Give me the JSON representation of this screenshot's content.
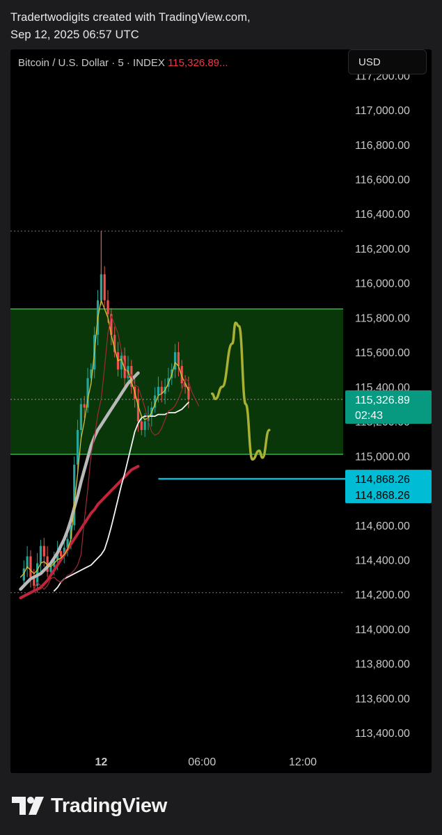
{
  "header": {
    "credit": "Tradertwodigits created with TradingView.com,",
    "timestamp": "Sep 12, 2025 06:57 UTC"
  },
  "legend": {
    "symbol": "Bitcoin / U.S. Dollar · 5 · INDEX",
    "last": "115,326.89..."
  },
  "currency_button": "USD",
  "brand": {
    "name": "TradingView",
    "logo_icon": "tradingview-logo-icon"
  },
  "colors": {
    "zone_fill": "#0a3a0a",
    "zone_border": "#3fae4f",
    "price_tag": "#089981",
    "support_line": "#00bcd4",
    "projection": "#a9b032",
    "ma_red": "#c2253a",
    "ma_white": "#e8e8e8",
    "ma_yellow": "#d4c233"
  },
  "chart_data": {
    "type": "line",
    "series_kind": "candlestick price with moving averages",
    "ylim": [
      113300,
      117350
    ],
    "y_ticks": [
      "117,200.00",
      "117,000.00",
      "116,800.00",
      "116,600.00",
      "116,400.00",
      "116,200.00",
      "116,000.00",
      "115,800.00",
      "115,600.00",
      "115,400.00",
      "115,200.00",
      "115,000.00",
      "114,800.00",
      "114,600.00",
      "114,400.00",
      "114,200.00",
      "114,000.00",
      "113,800.00",
      "113,600.00",
      "113,400.00"
    ],
    "y_tick_values": [
      117200,
      117000,
      116800,
      116600,
      116400,
      116200,
      116000,
      115800,
      115600,
      115400,
      115200,
      115000,
      114800,
      114600,
      114400,
      114200,
      114000,
      113800,
      113600,
      113400
    ],
    "x_ticks": [
      {
        "label": "12",
        "bar": 24
      },
      {
        "label": "06:00",
        "bar": 54
      },
      {
        "label": "12:00",
        "bar": 84
      }
    ],
    "x_bar_range": [
      -3,
      96
    ],
    "price": [
      114280,
      114350,
      114420,
      114300,
      114250,
      114380,
      114480,
      114420,
      114330,
      114360,
      114400,
      114450,
      114420,
      114470,
      114520,
      114600,
      114950,
      115150,
      115300,
      115280,
      115450,
      115500,
      115700,
      115900,
      116050,
      115900,
      115820,
      115700,
      115600,
      115500,
      115580,
      115450,
      115520,
      115400,
      115330,
      115200,
      115150,
      115200,
      115230,
      115280,
      115350,
      115400,
      115360,
      115400,
      115450,
      115500,
      115600,
      115520,
      115420,
      115400,
      115326.89
    ],
    "ma_fast": [
      114300,
      114320,
      114360,
      114340,
      114320,
      114340,
      114380,
      114390,
      114370,
      114360,
      114380,
      114400,
      114410,
      114430,
      114460,
      114520,
      114720,
      114900,
      115100,
      115200,
      115330,
      115420,
      115600,
      115800,
      115900,
      115850,
      115800,
      115700,
      115620,
      115550,
      115560,
      115500,
      115490,
      115430,
      115370,
      115290,
      115230,
      115210,
      115220,
      115250,
      115300,
      115350,
      115360,
      115380,
      115420,
      115470,
      115540,
      115520,
      115460,
      115420,
      115380
    ],
    "ma_white_mid": [
      114220,
      114240,
      114270,
      114290,
      114300,
      114310,
      114320,
      114330,
      114340,
      114350,
      114360,
      114370,
      114390,
      114410,
      114430,
      114460,
      114520,
      114590,
      114670,
      114750,
      114830,
      114900,
      114980,
      115060,
      115140,
      115190,
      115220,
      115230,
      115230,
      115230,
      115230,
      115240,
      115240,
      115240,
      115250,
      115250,
      115250,
      115260,
      115270,
      115290,
      115310
    ],
    "ma_thick": [
      114230,
      114250,
      114270,
      114290,
      114300,
      114310,
      114320,
      114340,
      114360,
      114380,
      114410,
      114440,
      114480,
      114520,
      114570,
      114630,
      114700,
      114770,
      114850,
      114920,
      114990,
      115060,
      115110,
      115150,
      115180,
      115210,
      115240,
      115270,
      115300,
      115330,
      115360,
      115390,
      115420,
      115440,
      115460,
      115480
    ],
    "ma_red": [
      114180,
      114190,
      114200,
      114210,
      114220,
      114230,
      114240,
      114260,
      114280,
      114310,
      114340,
      114370,
      114400,
      114430,
      114460,
      114490,
      114520,
      114550,
      114580,
      114610,
      114640,
      114670,
      114690,
      114720,
      114740,
      114760,
      114780,
      114800,
      114820,
      114840,
      114860,
      114880,
      114900,
      114920,
      114930,
      114940
    ],
    "zone": {
      "top": 115850,
      "bottom": 115010
    },
    "dotted_levels": [
      116300,
      114210
    ],
    "current_price": {
      "value": 115326.89,
      "label": "115,326.89",
      "countdown": "02:43"
    },
    "support_line": {
      "value": 114868.26,
      "from_bar": 41,
      "labels": [
        "114,868.26",
        "114,868.26"
      ]
    },
    "projection": [
      [
        57,
        115360
      ],
      [
        58,
        115330
      ],
      [
        60,
        115400
      ],
      [
        63,
        115650
      ],
      [
        64,
        115770
      ],
      [
        65,
        115750
      ],
      [
        67,
        115300
      ],
      [
        69,
        114980
      ],
      [
        71,
        115030
      ],
      [
        72,
        114990
      ],
      [
        74,
        115150
      ]
    ]
  }
}
